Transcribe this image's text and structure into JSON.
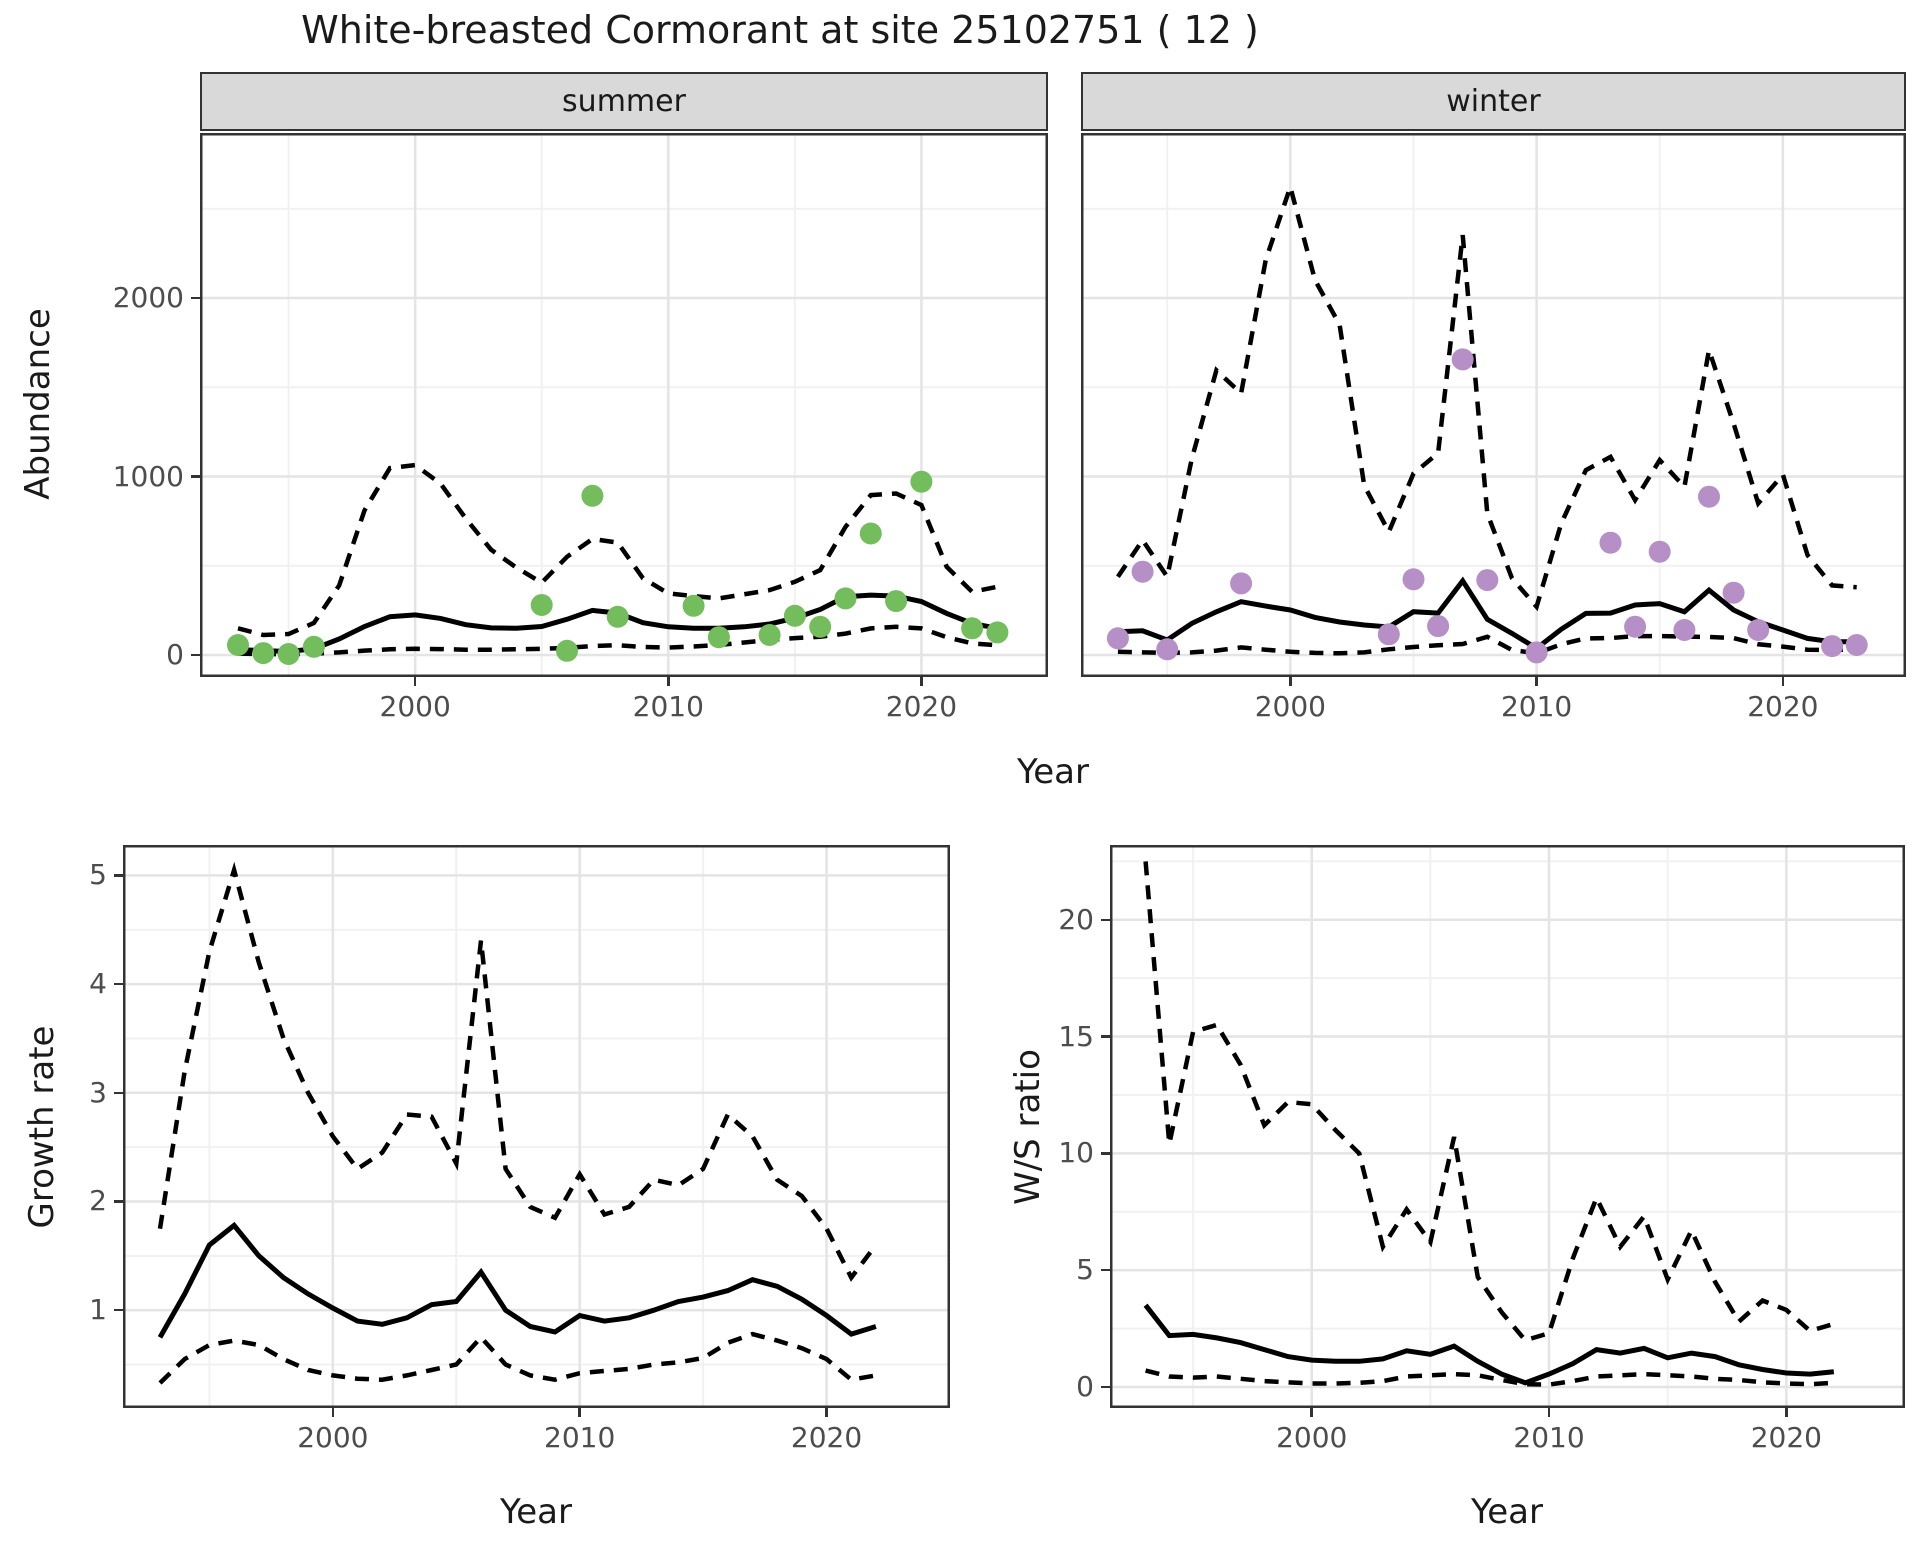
{
  "title": "White-breasted Cormorant at site 25102751 ( 12 )",
  "facets": {
    "summer": "summer",
    "winter": "winter"
  },
  "axes": {
    "abundance": "Abundance",
    "growth_rate": "Growth rate",
    "ws_ratio": "W/S ratio",
    "year": "Year"
  },
  "colors": {
    "summer_point": "#74bd5c",
    "winter_point": "#b58fc6",
    "line": "#000000",
    "strip_bg": "#d9d9d9",
    "grid_major": "#e4e4e4",
    "grid_minor": "#f1f1f1",
    "tick_label": "#4d4d4d",
    "panel_border": "#333333"
  },
  "chart_data": [
    {
      "id": "abundance-summer",
      "type": "line",
      "title": "summer",
      "xlabel": "Year",
      "ylabel": "Abundance",
      "xlim": [
        1991.5,
        2025
      ],
      "ylim": [
        -123,
        2924
      ],
      "x": [
        1993,
        1994,
        1995,
        1996,
        1997,
        1998,
        1999,
        2000,
        2001,
        2002,
        2003,
        2004,
        2005,
        2006,
        2007,
        2008,
        2009,
        2010,
        2011,
        2012,
        2013,
        2014,
        2015,
        2016,
        2017,
        2018,
        2019,
        2020,
        2021,
        2022,
        2023
      ],
      "series": [
        {
          "name": "median",
          "style": "solid",
          "values": [
            30,
            25,
            20,
            35,
            90,
            160,
            215,
            225,
            205,
            170,
            152,
            150,
            160,
            200,
            250,
            235,
            181,
            158,
            150,
            150,
            158,
            174,
            207,
            255,
            327,
            336,
            330,
            300,
            233,
            177,
            150
          ]
        },
        {
          "name": "upper_ci",
          "style": "dashed",
          "values": [
            150,
            112,
            118,
            180,
            390,
            810,
            1047,
            1064,
            960,
            765,
            590,
            490,
            405,
            550,
            650,
            630,
            430,
            345,
            330,
            317,
            340,
            364,
            410,
            476,
            718,
            896,
            905,
            840,
            494,
            354,
            382
          ]
        },
        {
          "name": "lower_ci",
          "style": "dashed",
          "values": [
            8,
            5,
            5,
            8,
            15,
            25,
            32,
            35,
            33,
            30,
            30,
            32,
            35,
            40,
            50,
            55,
            45,
            42,
            48,
            56,
            70,
            85,
            95,
            102,
            120,
            149,
            158,
            149,
            100,
            65,
            55
          ]
        }
      ],
      "points": {
        "name": "observations",
        "color": "#74bd5c",
        "x": [
          1993,
          1994,
          1995,
          1996,
          2005,
          2006,
          2007,
          2008,
          2011,
          2012,
          2014,
          2015,
          2016,
          2017,
          2018,
          2019,
          2020,
          2022,
          2023
        ],
        "y": [
          56,
          11,
          6,
          46,
          280,
          24,
          892,
          214,
          276,
          100,
          112,
          220,
          158,
          317,
          681,
          302,
          971,
          150,
          127
        ]
      },
      "xticks": {
        "values": [
          2000,
          2010,
          2020
        ],
        "labels": [
          "2000",
          "2010",
          "2020"
        ]
      },
      "yticks": {
        "values": [
          0,
          1000,
          2000
        ],
        "labels": [
          "0",
          "1000",
          "2000"
        ]
      },
      "x_minor": [
        1995,
        2005,
        2015,
        2025
      ],
      "y_minor": [
        500,
        1500,
        2500
      ]
    },
    {
      "id": "abundance-winter",
      "type": "line",
      "title": "winter",
      "xlabel": "Year",
      "ylabel": "Abundance",
      "xlim": [
        1991.5,
        2025
      ],
      "ylim": [
        -123,
        2924
      ],
      "x": [
        1993,
        1994,
        1995,
        1996,
        1997,
        1998,
        1999,
        2000,
        2001,
        2002,
        2003,
        2004,
        2005,
        2006,
        2007,
        2008,
        2009,
        2010,
        2011,
        2012,
        2013,
        2014,
        2015,
        2016,
        2017,
        2018,
        2019,
        2020,
        2021,
        2022,
        2023
      ],
      "series": [
        {
          "name": "median",
          "style": "solid",
          "values": [
            130,
            136,
            84,
            177,
            242,
            299,
            274,
            252,
            211,
            185,
            168,
            157,
            243,
            235,
            416,
            200,
            121,
            37,
            144,
            233,
            235,
            280,
            288,
            242,
            364,
            252,
            187,
            140,
            93,
            74,
            74
          ]
        },
        {
          "name": "upper_ci",
          "style": "dashed",
          "values": [
            438,
            644,
            438,
            1100,
            1595,
            1465,
            2212,
            2622,
            2100,
            1850,
            950,
            690,
            1017,
            1131,
            2352,
            793,
            430,
            271,
            737,
            1036,
            1110,
            868,
            1092,
            942,
            1708,
            1297,
            850,
            1010,
            560,
            390,
            380
          ]
        },
        {
          "name": "lower_ci",
          "style": "dashed",
          "values": [
            18,
            15,
            12,
            15,
            25,
            43,
            30,
            18,
            12,
            10,
            15,
            32,
            45,
            55,
            62,
            102,
            28,
            10,
            60,
            93,
            95,
            106,
            106,
            104,
            101,
            95,
            60,
            47,
            30,
            28,
            31
          ]
        }
      ],
      "points": {
        "name": "observations",
        "color": "#b58fc6",
        "x": [
          1993,
          1994,
          1995,
          1998,
          2004,
          2005,
          2006,
          2007,
          2008,
          2010,
          2013,
          2014,
          2015,
          2016,
          2017,
          2018,
          2019,
          2022,
          2023
        ],
        "y": [
          94,
          467,
          32,
          401,
          116,
          424,
          162,
          1656,
          420,
          15,
          629,
          159,
          579,
          140,
          887,
          349,
          140,
          50,
          56
        ]
      },
      "xticks": {
        "values": [
          2000,
          2010,
          2020
        ],
        "labels": [
          "2000",
          "2010",
          "2020"
        ]
      },
      "x_minor": [
        1995,
        2005,
        2015,
        2025
      ],
      "y_minor": [
        500,
        1500,
        2500
      ]
    },
    {
      "id": "growth-rate",
      "type": "line",
      "title": "",
      "xlabel": "Year",
      "ylabel": "Growth rate",
      "xlim": [
        1991.5,
        2025
      ],
      "ylim": [
        0.1,
        5.28
      ],
      "x": [
        1993,
        1994,
        1995,
        1996,
        1997,
        1998,
        1999,
        2000,
        2001,
        2002,
        2003,
        2004,
        2005,
        2006,
        2007,
        2008,
        2009,
        2010,
        2011,
        2012,
        2013,
        2014,
        2015,
        2016,
        2017,
        2018,
        2019,
        2020,
        2021,
        2022
      ],
      "series": [
        {
          "name": "median",
          "style": "solid",
          "values": [
            0.75,
            1.15,
            1.6,
            1.78,
            1.5,
            1.3,
            1.15,
            1.02,
            0.9,
            0.87,
            0.93,
            1.05,
            1.08,
            1.35,
            1.0,
            0.85,
            0.8,
            0.95,
            0.9,
            0.93,
            1.0,
            1.08,
            1.12,
            1.18,
            1.28,
            1.22,
            1.1,
            0.95,
            0.78,
            0.85
          ]
        },
        {
          "name": "upper_ci",
          "style": "dashed",
          "values": [
            1.75,
            3.2,
            4.3,
            5.05,
            4.2,
            3.5,
            3.0,
            2.6,
            2.3,
            2.45,
            2.8,
            2.78,
            2.35,
            4.4,
            2.3,
            1.95,
            1.85,
            2.25,
            1.88,
            1.95,
            2.2,
            2.15,
            2.3,
            2.8,
            2.6,
            2.2,
            2.05,
            1.75,
            1.3,
            1.6
          ]
        },
        {
          "name": "lower_ci",
          "style": "dashed",
          "values": [
            0.33,
            0.55,
            0.68,
            0.72,
            0.68,
            0.55,
            0.45,
            0.4,
            0.37,
            0.36,
            0.4,
            0.45,
            0.5,
            0.75,
            0.5,
            0.4,
            0.36,
            0.42,
            0.44,
            0.46,
            0.5,
            0.52,
            0.56,
            0.7,
            0.78,
            0.72,
            0.65,
            0.55,
            0.36,
            0.4
          ]
        }
      ],
      "xticks": {
        "values": [
          2000,
          2010,
          2020
        ],
        "labels": [
          "2000",
          "2010",
          "2020"
        ]
      },
      "yticks": {
        "values": [
          1,
          2,
          3,
          4,
          5
        ],
        "labels": [
          "1",
          "2",
          "3",
          "4",
          "5"
        ]
      },
      "x_minor": [
        1995,
        2005,
        2015,
        2025
      ],
      "y_minor": [
        0.5,
        1.5,
        2.5,
        3.5,
        4.5
      ]
    },
    {
      "id": "ws-ratio",
      "type": "line",
      "title": "",
      "xlabel": "Year",
      "ylabel": "W/S ratio",
      "xlim": [
        1991.5,
        2025
      ],
      "ylim": [
        -0.9,
        23.2
      ],
      "x": [
        1993,
        1994,
        1995,
        1996,
        1997,
        1998,
        1999,
        2000,
        2001,
        2002,
        2003,
        2004,
        2005,
        2006,
        2007,
        2008,
        2009,
        2010,
        2011,
        2012,
        2013,
        2014,
        2015,
        2016,
        2017,
        2018,
        2019,
        2020,
        2021,
        2022
      ],
      "series": [
        {
          "name": "median",
          "style": "solid",
          "values": [
            3.5,
            2.2,
            2.25,
            2.1,
            1.9,
            1.6,
            1.3,
            1.15,
            1.1,
            1.1,
            1.2,
            1.55,
            1.4,
            1.75,
            1.1,
            0.55,
            0.18,
            0.55,
            1.0,
            1.6,
            1.45,
            1.65,
            1.25,
            1.45,
            1.3,
            0.95,
            0.75,
            0.6,
            0.55,
            0.65
          ]
        },
        {
          "name": "upper_ci",
          "style": "dashed",
          "values": [
            22.5,
            10.4,
            15.2,
            15.5,
            13.8,
            11.2,
            12.2,
            12.1,
            11.0,
            10.0,
            6.0,
            7.6,
            6.2,
            10.7,
            4.7,
            3.2,
            2.0,
            2.3,
            5.5,
            8.1,
            6.0,
            7.3,
            4.6,
            6.7,
            4.5,
            2.8,
            3.7,
            3.3,
            2.4,
            2.7
          ]
        },
        {
          "name": "lower_ci",
          "style": "dashed",
          "values": [
            0.7,
            0.45,
            0.4,
            0.45,
            0.35,
            0.25,
            0.2,
            0.15,
            0.15,
            0.18,
            0.25,
            0.45,
            0.5,
            0.55,
            0.5,
            0.3,
            0.12,
            0.1,
            0.25,
            0.45,
            0.5,
            0.55,
            0.5,
            0.45,
            0.35,
            0.3,
            0.2,
            0.15,
            0.12,
            0.18
          ]
        }
      ],
      "xticks": {
        "values": [
          2000,
          2010,
          2020
        ],
        "labels": [
          "2000",
          "2010",
          "2020"
        ]
      },
      "yticks": {
        "values": [
          0,
          5,
          10,
          15,
          20
        ],
        "labels": [
          "0",
          "5",
          "10",
          "15",
          "20"
        ]
      },
      "x_minor": [
        1995,
        2005,
        2015,
        2025
      ],
      "y_minor": [
        2.5,
        7.5,
        12.5,
        17.5,
        22.5
      ]
    }
  ]
}
